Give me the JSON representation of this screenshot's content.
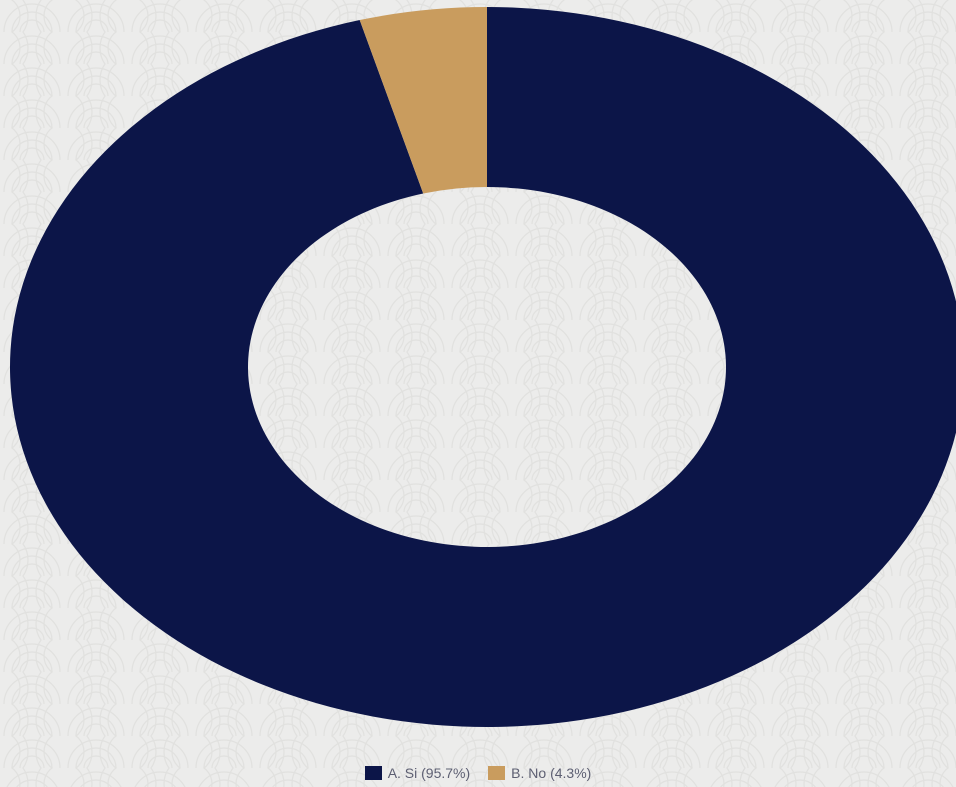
{
  "chart_data": {
    "type": "pie",
    "style": "donut",
    "slices": [
      {
        "label": "A. Si",
        "value": 95.7,
        "color": "#0c1548"
      },
      {
        "label": "B. No",
        "value": 4.3,
        "color": "#c99c5e"
      }
    ],
    "legend": {
      "position": "bottom",
      "items": [
        {
          "text": "A. Si (95.7%)",
          "color": "#0c1548"
        },
        {
          "text": "B. No (4.3%)",
          "color": "#c99c5e"
        }
      ]
    }
  }
}
